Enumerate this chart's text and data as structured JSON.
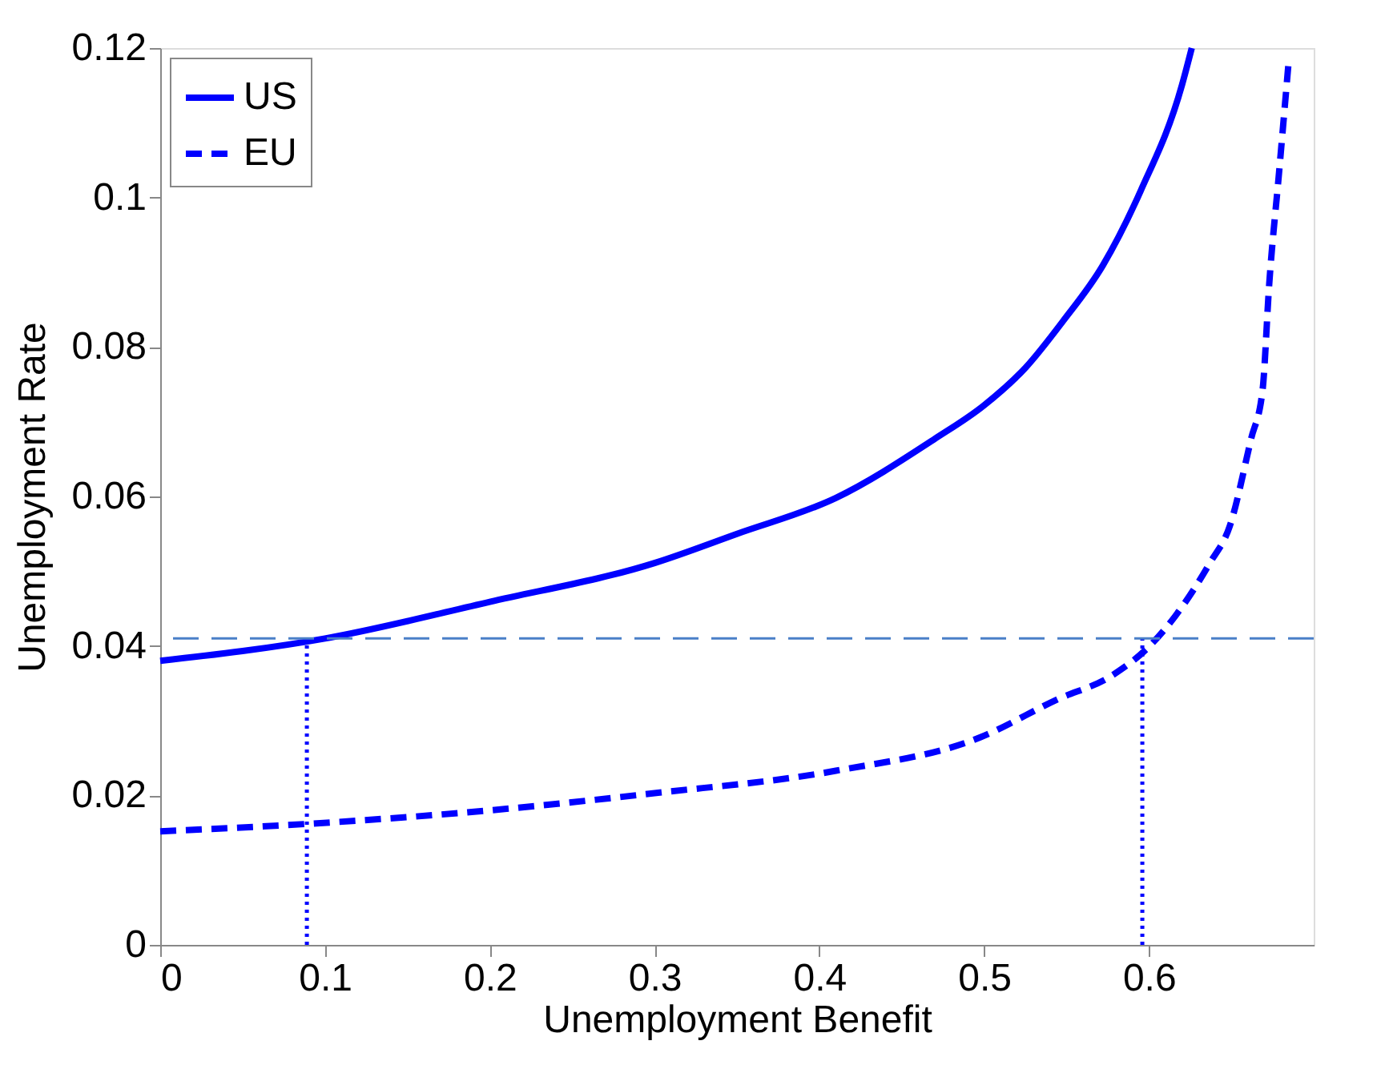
{
  "chart_data": {
    "type": "line",
    "xlabel": "Unemployment Benefit",
    "ylabel": "Unemployment Rate",
    "xlim": [
      0,
      0.7
    ],
    "ylim": [
      0,
      0.12
    ],
    "xticks": [
      0,
      0.1,
      0.2,
      0.3,
      0.4,
      0.5,
      0.6
    ],
    "yticks": [
      0,
      0.02,
      0.04,
      0.06,
      0.08,
      0.1,
      0.12
    ],
    "grid": false,
    "legend": "top left",
    "series": [
      {
        "name": "US",
        "color": "#0000ff",
        "line_style": "solid",
        "x": [
          0,
          0.1,
          0.2,
          0.3,
          0.35,
          0.41,
          0.47,
          0.5,
          0.525,
          0.548,
          0.572,
          0.595,
          0.62,
          0.626
        ],
        "values": [
          0.038,
          0.041,
          0.0459,
          0.0511,
          0.055,
          0.0598,
          0.0677,
          0.0722,
          0.0772,
          0.0835,
          0.0909,
          0.1009,
          0.115,
          0.12
        ]
      },
      {
        "name": "EU",
        "color": "#0000ff",
        "line_style": "dashed",
        "x": [
          0,
          0.09,
          0.2,
          0.3,
          0.41,
          0.498,
          0.544,
          0.578,
          0.6,
          0.616,
          0.637,
          0.649,
          0.662,
          0.669,
          0.673,
          0.679,
          0.685
        ],
        "values": [
          0.0152,
          0.0162,
          0.018,
          0.0203,
          0.0233,
          0.0278,
          0.0328,
          0.0361,
          0.0399,
          0.044,
          0.0511,
          0.056,
          0.0677,
          0.0743,
          0.0884,
          0.1034,
          0.1187
        ]
      },
      {
        "color": "#0000ff",
        "line_style": "dotted",
        "x": [
          0.089,
          0.089
        ],
        "values": [
          0,
          0.041
        ]
      },
      {
        "color": "#0000ff",
        "line_style": "dotted",
        "x": [
          0.596,
          0.596
        ],
        "values": [
          0,
          0.041
        ]
      }
    ],
    "ref_lines": [
      {
        "axis": "y",
        "value": 0.041,
        "color": "#4a7fc8",
        "line_style": "dashed"
      }
    ]
  }
}
